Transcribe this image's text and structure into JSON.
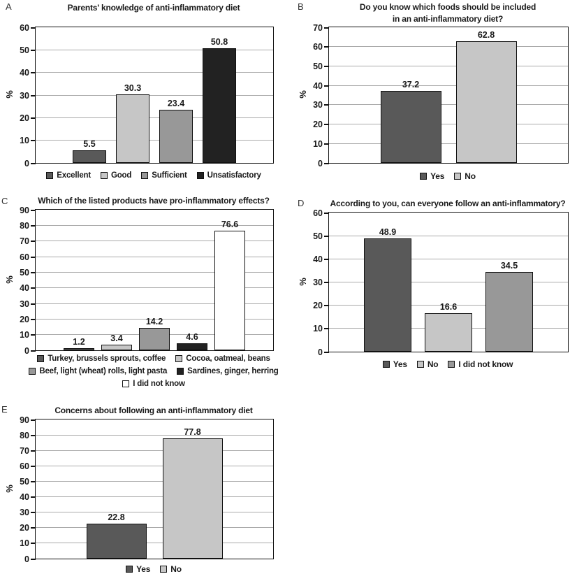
{
  "figure": {
    "description": "Five-panel bar chart figure about parents' knowledge of anti-inflammatory diet",
    "panel_labels": [
      "A",
      "B",
      "C",
      "D",
      "E"
    ]
  },
  "chart_data": [
    {
      "id": "A",
      "type": "bar",
      "title": "Parents' knowledge of anti-inflammatory diet",
      "title_lines": [
        "Parents' knowledge of anti-inflammatory diet"
      ],
      "ylabel": "%",
      "ylim": [
        0,
        60
      ],
      "ytick_step": 10,
      "yticks": [
        0,
        10,
        20,
        30,
        40,
        50,
        60
      ],
      "grid": true,
      "legend_position": "bottom",
      "categories": [
        "Excellent",
        "Good",
        "Sufficient",
        "Unsatisfactory"
      ],
      "values": [
        5.5,
        30.3,
        23.4,
        50.8
      ],
      "bar_colors": [
        "#595959",
        "#c6c6c6",
        "#989898",
        "#222222"
      ]
    },
    {
      "id": "B",
      "type": "bar",
      "title": "Do you know which foods should be included in an anti-inflammatory diet?",
      "title_lines": [
        "Do you know which foods should be included",
        "in an anti-inflammatory diet?"
      ],
      "ylabel": "%",
      "ylim": [
        0,
        70
      ],
      "ytick_step": 10,
      "yticks": [
        0,
        10,
        20,
        30,
        40,
        50,
        60,
        70
      ],
      "grid": true,
      "legend_position": "bottom",
      "categories": [
        "Yes",
        "No"
      ],
      "values": [
        37.2,
        62.8
      ],
      "bar_colors": [
        "#595959",
        "#c6c6c6"
      ]
    },
    {
      "id": "C",
      "type": "bar",
      "title": "Which of the listed products have pro-inflammatory effects?",
      "title_lines": [
        "Which of the listed products have pro-inflammatory effects?"
      ],
      "ylabel": "%",
      "ylim": [
        0,
        90
      ],
      "ytick_step": 10,
      "yticks": [
        0,
        10,
        20,
        30,
        40,
        50,
        60,
        70,
        80,
        90
      ],
      "grid": true,
      "legend_position": "bottom",
      "categories": [
        "Turkey, brussels sprouts, coffee",
        "Cocoa, oatmeal, beans",
        "Beef, light (wheat) rolls, light pasta",
        "Sardines, ginger, herring",
        "I did not know"
      ],
      "values": [
        1.2,
        3.4,
        14.2,
        4.6,
        76.6
      ],
      "bar_colors": [
        "#595959",
        "#c6c6c6",
        "#989898",
        "#222222",
        "#ffffff"
      ]
    },
    {
      "id": "D",
      "type": "bar",
      "title": "According to you, can everyone follow an anti-inflammatory?",
      "title_lines": [
        "According to you, can everyone follow an anti-inflammatory?"
      ],
      "ylabel": "%",
      "ylim": [
        0,
        60
      ],
      "ytick_step": 10,
      "yticks": [
        0,
        10,
        20,
        30,
        40,
        50,
        60
      ],
      "grid": true,
      "legend_position": "bottom",
      "categories": [
        "Yes",
        "No",
        "I did not know"
      ],
      "values": [
        48.9,
        16.6,
        34.5
      ],
      "bar_colors": [
        "#595959",
        "#c6c6c6",
        "#989898"
      ]
    },
    {
      "id": "E",
      "type": "bar",
      "title": "Concerns about following an anti-inflammatory diet",
      "title_lines": [
        "Concerns about following an anti-inflammatory diet"
      ],
      "ylabel": "%",
      "ylim": [
        0,
        90
      ],
      "ytick_step": 10,
      "yticks": [
        0,
        10,
        20,
        30,
        40,
        50,
        60,
        70,
        80,
        90
      ],
      "grid": true,
      "legend_position": "bottom",
      "categories": [
        "Yes",
        "No"
      ],
      "values": [
        22.8,
        77.8
      ],
      "bar_colors": [
        "#595959",
        "#c6c6c6"
      ]
    }
  ],
  "colors": {
    "dark_gray": "#595959",
    "light_gray": "#c6c6c6",
    "medium_gray": "#989898",
    "black": "#222222",
    "white": "#ffffff",
    "gridline": "#aaaaaa",
    "axis": "#111111",
    "text": "#1a1a1a"
  }
}
